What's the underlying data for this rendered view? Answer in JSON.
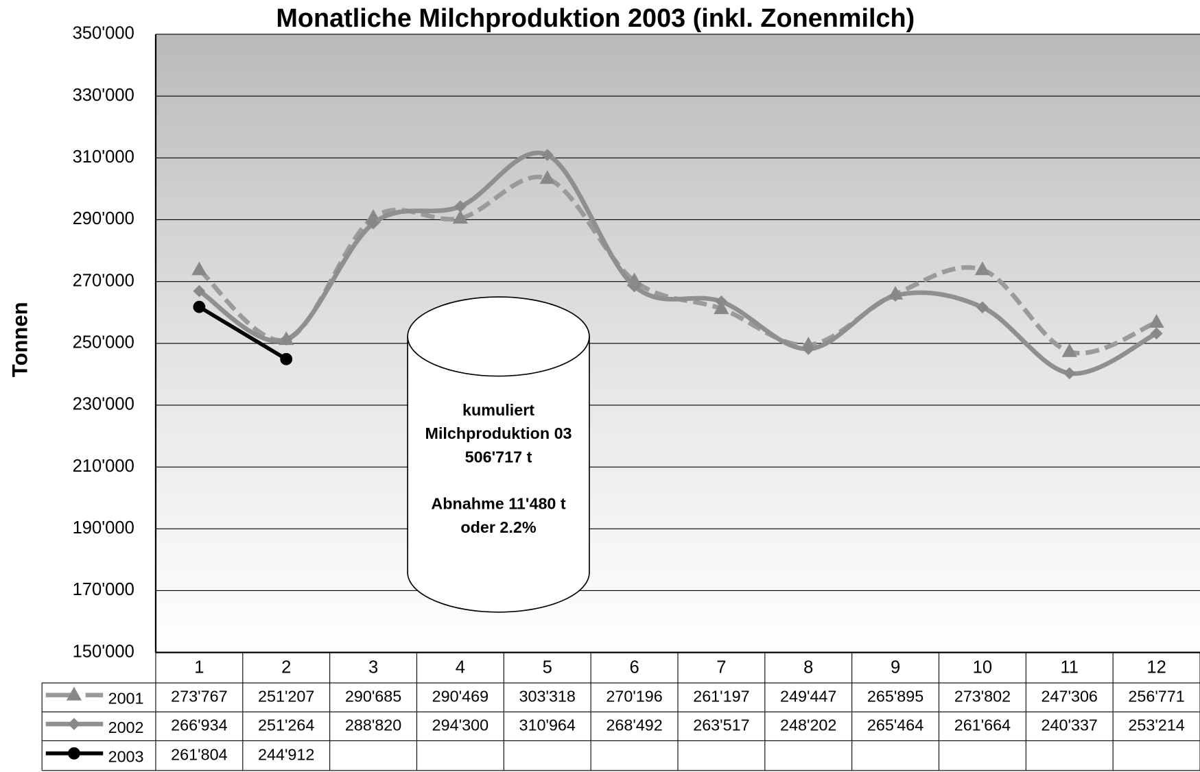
{
  "chart_data": {
    "type": "line",
    "title": "Monatliche Milchproduktion 2003 (inkl. Zonenmilch)",
    "y_label": "Tonnen",
    "categories": [
      "1",
      "2",
      "3",
      "4",
      "5",
      "6",
      "7",
      "8",
      "9",
      "10",
      "11",
      "12"
    ],
    "series": [
      {
        "name": "2001",
        "color": "#9a9a9a",
        "style": "dashed",
        "marker": "triangle",
        "values": [
          273767,
          251207,
          290685,
          290469,
          303318,
          270196,
          261197,
          249447,
          265895,
          273802,
          247306,
          256771
        ],
        "value_labels": [
          "273'767",
          "251'207",
          "290'685",
          "290'469",
          "303'318",
          "270'196",
          "261'197",
          "249'447",
          "265'895",
          "273'802",
          "247'306",
          "256'771"
        ]
      },
      {
        "name": "2002",
        "color": "#8f8f8f",
        "style": "solid",
        "marker": "diamond",
        "values": [
          266934,
          251264,
          288820,
          294300,
          310964,
          268492,
          263517,
          248202,
          265464,
          261664,
          240337,
          253214
        ],
        "value_labels": [
          "266'934",
          "251'264",
          "288'820",
          "294'300",
          "310'964",
          "268'492",
          "263'517",
          "248'202",
          "265'464",
          "261'664",
          "240'337",
          "253'214"
        ]
      },
      {
        "name": "2003",
        "color": "#000000",
        "style": "solid",
        "marker": "circle",
        "values": [
          261804,
          244912,
          null,
          null,
          null,
          null,
          null,
          null,
          null,
          null,
          null,
          null
        ],
        "value_labels": [
          "261'804",
          "244'912",
          null,
          null,
          null,
          null,
          null,
          null,
          null,
          null,
          null,
          null
        ]
      }
    ],
    "ylim": [
      150000,
      350000
    ],
    "yticks": [
      {
        "value": 150000,
        "label": "150'000"
      },
      {
        "value": 170000,
        "label": "170'000"
      },
      {
        "value": 190000,
        "label": "190'000"
      },
      {
        "value": 210000,
        "label": "210'000"
      },
      {
        "value": 230000,
        "label": "230'000"
      },
      {
        "value": 250000,
        "label": "250'000"
      },
      {
        "value": 270000,
        "label": "270'000"
      },
      {
        "value": 290000,
        "label": "290'000"
      },
      {
        "value": 310000,
        "label": "310'000"
      },
      {
        "value": 330000,
        "label": "330'000"
      },
      {
        "value": 350000,
        "label": "350'000"
      }
    ],
    "grid": true,
    "annotation": [
      "kumuliert",
      "Milchproduktion 03",
      "506'717 t",
      "Abnahme 11'480 t",
      "oder 2.2%"
    ]
  }
}
